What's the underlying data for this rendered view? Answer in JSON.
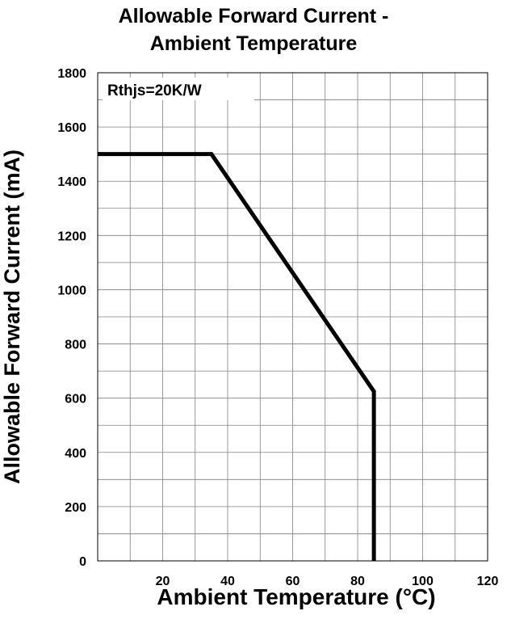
{
  "chart_data": {
    "type": "line",
    "title_line1": "Allowable Forward Current -",
    "title_line2": "Ambient Temperature",
    "xlabel": "Ambient Temperature (°C)",
    "ylabel": "Allowable Forward Current (mA)",
    "xlim": [
      0,
      120
    ],
    "ylim": [
      0,
      1800
    ],
    "x_ticks": [
      20,
      40,
      60,
      80,
      100,
      120
    ],
    "y_ticks": [
      0,
      200,
      400,
      600,
      800,
      1000,
      1200,
      1400,
      1600,
      1800
    ],
    "grid": true,
    "annotation": "Rthjs=20K/W",
    "series": [
      {
        "x": [
          0,
          35,
          85,
          85
        ],
        "y": [
          1500,
          1500,
          625,
          0
        ]
      }
    ]
  }
}
